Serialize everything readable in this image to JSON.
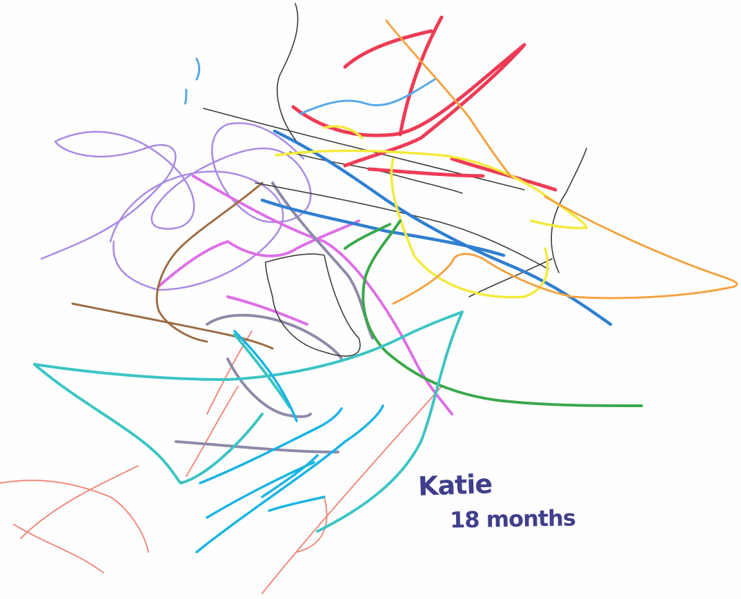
{
  "artwork": {
    "caption_name": "Katie",
    "caption_age": "18 months",
    "background": "#fefefe",
    "caption_color": "#3f3f8c",
    "crayon_colors": {
      "red": "#ee3b55",
      "blue": "#2f7fd0",
      "light_blue": "#58a8e8",
      "yellow": "#f3ea3a",
      "orange": "#f4a241",
      "purple": "#a98ae3",
      "magenta": "#dd6fe6",
      "black": "#3a3a3a",
      "brown": "#9c6c43",
      "green": "#3aa84a",
      "gray_violet": "#8e8aa8",
      "teal": "#3cc4c4",
      "cyan": "#17b4e4",
      "salmon": "#f08a7c"
    }
  }
}
